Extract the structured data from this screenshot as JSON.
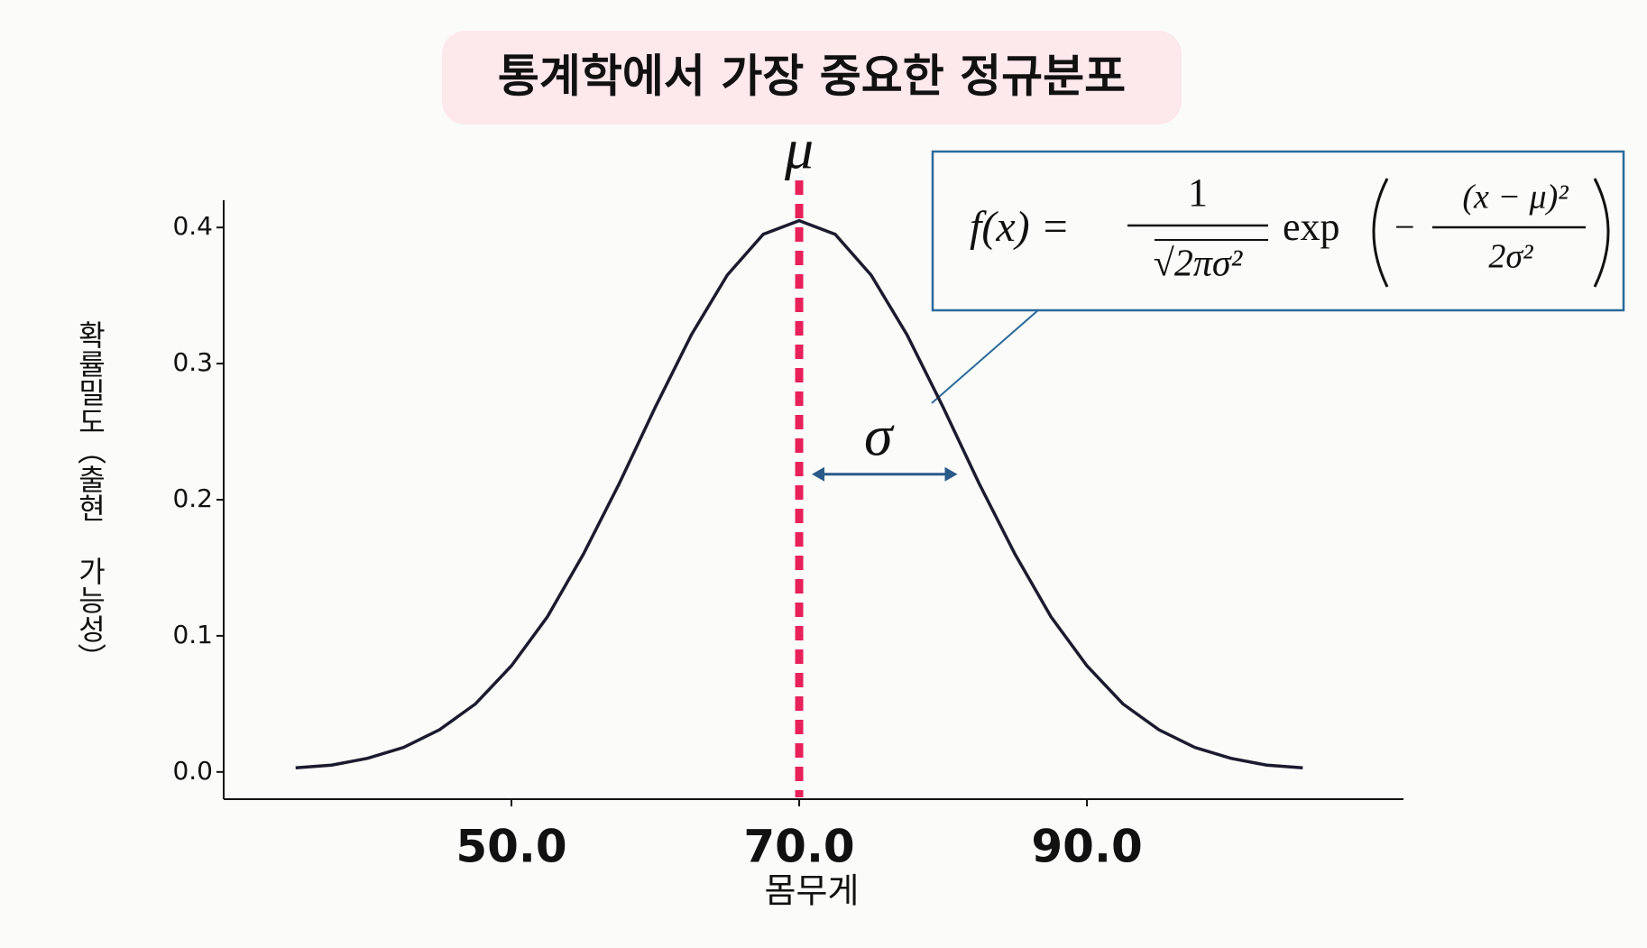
{
  "chart_data": {
    "type": "line",
    "title": "통계학에서 가장 중요한 정규분포",
    "x_label": "몸무게",
    "y_label": "확률밀도（출현 가능성）",
    "x": [
      35,
      37.5,
      40,
      42.5,
      45,
      47.5,
      50,
      52.5,
      55,
      57.5,
      60,
      62.5,
      65,
      67.5,
      70,
      72.5,
      75,
      77.5,
      80,
      82.5,
      85,
      87.5,
      90,
      92.5,
      95,
      97.5,
      100,
      102.5,
      105
    ],
    "values": [
      0.003,
      0.005,
      0.01,
      0.018,
      0.031,
      0.05,
      0.078,
      0.114,
      0.16,
      0.212,
      0.268,
      0.321,
      0.365,
      0.395,
      0.405,
      0.395,
      0.365,
      0.321,
      0.268,
      0.212,
      0.16,
      0.114,
      0.078,
      0.05,
      0.031,
      0.018,
      0.01,
      0.005,
      0.003
    ],
    "color": "#1b1b2f",
    "xlim": [
      30,
      112
    ],
    "ylim": [
      -0.02,
      0.42
    ],
    "xticks": [
      {
        "value": 50,
        "label": "50.0"
      },
      {
        "value": 70,
        "label": "70.0"
      },
      {
        "value": 90,
        "label": "90.0"
      }
    ],
    "yticks": [
      {
        "value": 0,
        "label": "0.0"
      },
      0.1,
      0.2,
      0.3,
      0.4
    ],
    "mean": 70,
    "sd": 11,
    "mean_label": "μ",
    "sd_label": "σ",
    "mean_color": "#e8215a",
    "sd_color": "#2a5a8a",
    "formula": {
      "lhs": "f(x) =",
      "numerator": "1",
      "denominator": "√2πσ²",
      "exp": "exp",
      "minus": "−",
      "inner_numerator": "(x − μ)²",
      "inner_denominator": "2σ²"
    }
  }
}
